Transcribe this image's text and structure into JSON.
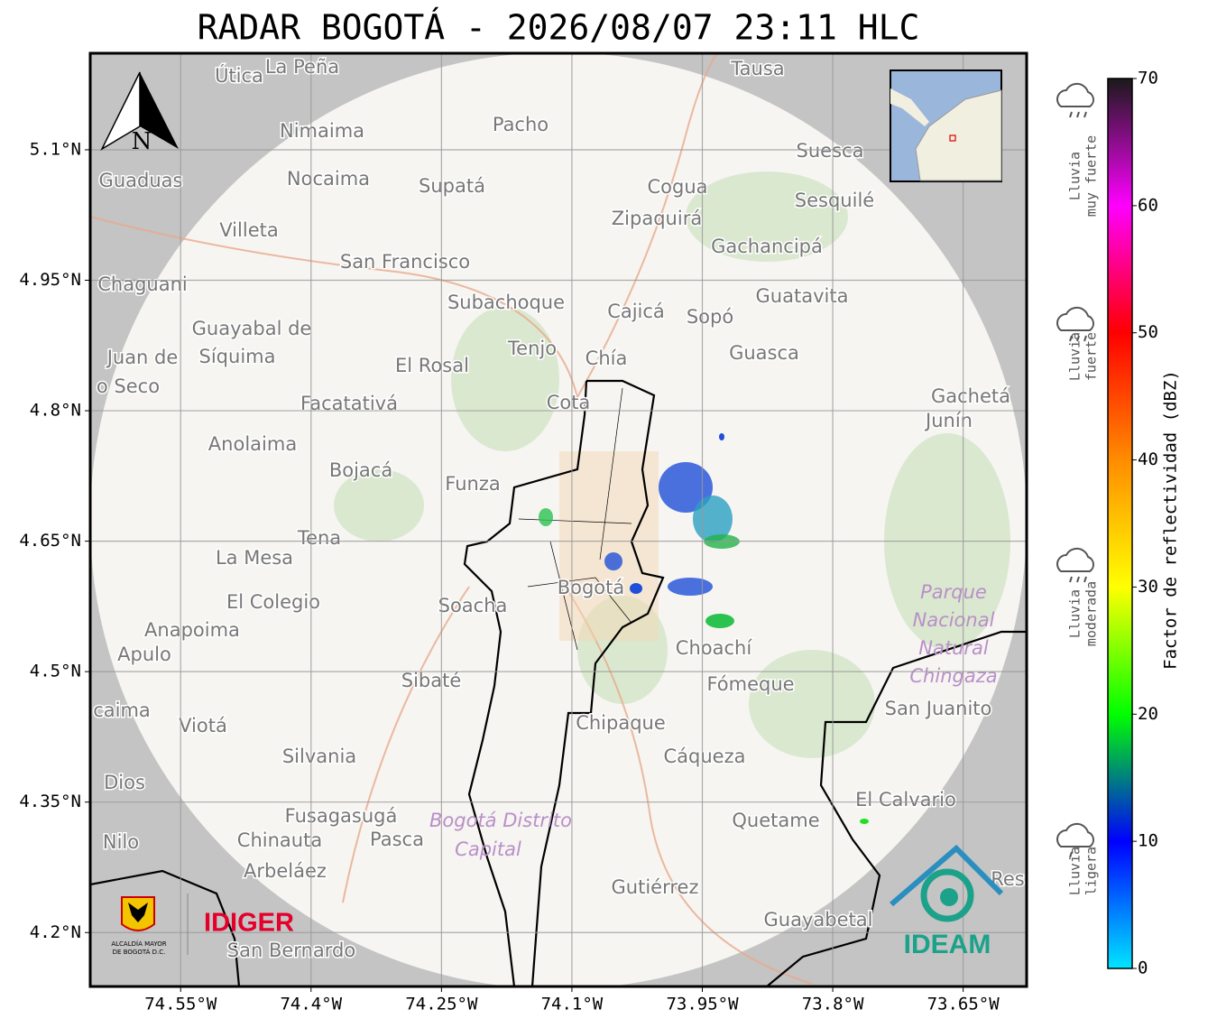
{
  "header": {
    "title": "RADAR BOGOTÁ - 2026/08/07 23:11 HLC"
  },
  "map": {
    "xlim": [
      -74.654,
      -73.577
    ],
    "ylim": [
      4.138,
      5.211
    ],
    "xticks": [
      {
        "value": -74.55,
        "label": "74.55°W"
      },
      {
        "value": -74.4,
        "label": "74.4°W"
      },
      {
        "value": -74.25,
        "label": "74.25°W"
      },
      {
        "value": -74.1,
        "label": "74.1°W"
      },
      {
        "value": -73.95,
        "label": "73.95°W"
      },
      {
        "value": -73.8,
        "label": "73.8°W"
      },
      {
        "value": -73.65,
        "label": "73.65°W"
      }
    ],
    "yticks": [
      {
        "value": 5.1,
        "label": "5.1°N"
      },
      {
        "value": 4.95,
        "label": "4.95°N"
      },
      {
        "value": 4.8,
        "label": "4.8°N"
      },
      {
        "value": 4.65,
        "label": "4.65°N"
      },
      {
        "value": 4.5,
        "label": "4.5°N"
      },
      {
        "value": 4.35,
        "label": "4.35°N"
      },
      {
        "value": 4.2,
        "label": "4.2°N"
      }
    ],
    "grid": true,
    "north": "N",
    "places": [
      "Útica",
      "La Peña",
      "Tausa",
      "Pacho",
      "Nimaima",
      "Suesca",
      "Guaduas",
      "Nocaima",
      "Supatá",
      "Cogua",
      "Sesquilé",
      "Zipaquirá",
      "Villeta",
      "Gachancipá",
      "San Francisco",
      "Chaguani",
      "Guatavita",
      "Subachoque",
      "Cajicá",
      "Sopó",
      "Guayabal de",
      "Síquima",
      "Tenjo",
      "Guasca",
      "Juan de",
      "Chía",
      "El Rosal",
      "o Seco",
      "Gachetá",
      "Facatativá",
      "Cota",
      "Junín",
      "Anolaima",
      "Bojacá",
      "Funza",
      "Tena",
      "La Mesa",
      "Bogotá",
      "El Colegio",
      "Soacha",
      "Anapoima",
      "Apulo",
      "Choachí",
      "Fómeque",
      "Sibaté",
      "San Juanito",
      "caima",
      "Viotá",
      "Chipaque",
      "Silvania",
      "Cáqueza",
      "Dios",
      "El Calvario",
      "Fusagasugá",
      "Quetame",
      "Nilo",
      "Chinauta",
      "Pasca",
      "Arbeláez",
      "Res",
      "Gutiérrez",
      "Guayabetal",
      "San Bernardo"
    ],
    "areas": [
      "Parque",
      "Nacional",
      "Natural",
      "Chingaza",
      "Bogotá Distrito",
      "Capital"
    ]
  },
  "colorbar": {
    "label": "Factor de reflectividad (dBZ)",
    "lim": [
      0,
      70
    ],
    "ticks": [
      0,
      10,
      20,
      30,
      40,
      50,
      60,
      70
    ],
    "colors": [
      "#00e5ff",
      "#0000ff",
      "#00ff00",
      "#ffff00",
      "#ff8c00",
      "#ff0000",
      "#ff00ff",
      "#1a1a1a"
    ]
  },
  "rain_levels": [
    [
      "Lluvia",
      "muy fuerte"
    ],
    [
      "Lluvia",
      "fuerte"
    ],
    [
      "Lluvia",
      "moderada"
    ],
    [
      "Lluvia",
      "ligera"
    ]
  ],
  "logos": {
    "alcaldia": [
      "ALCALDÍA MAYOR",
      "DE BOGOTÁ D.C."
    ],
    "idiger": "IDIGER",
    "ideam": "IDEAM"
  }
}
